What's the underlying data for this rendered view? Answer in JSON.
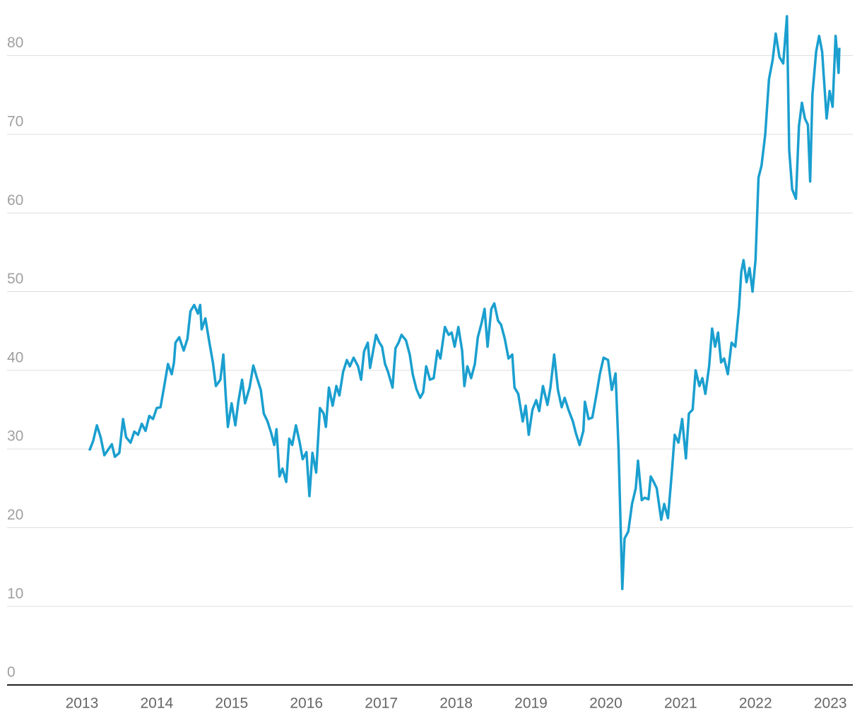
{
  "chart_data": {
    "type": "line",
    "x": [
      2013.1,
      2013.15,
      2013.2,
      2013.25,
      2013.3,
      2013.4,
      2013.44,
      2013.5,
      2013.55,
      2013.59,
      2013.65,
      2013.7,
      2013.75,
      2013.8,
      2013.85,
      2013.9,
      2013.95,
      2014.0,
      2014.05,
      2014.1,
      2014.15,
      2014.2,
      2014.23,
      2014.25,
      2014.3,
      2014.36,
      2014.41,
      2014.45,
      2014.5,
      2014.55,
      2014.58,
      2014.6,
      2014.65,
      2014.7,
      2014.75,
      2014.79,
      2014.85,
      2014.89,
      2014.92,
      2014.95,
      2015.0,
      2015.05,
      2015.09,
      2015.14,
      2015.18,
      2015.24,
      2015.29,
      2015.34,
      2015.39,
      2015.43,
      2015.48,
      2015.53,
      2015.57,
      2015.6,
      2015.64,
      2015.68,
      2015.73,
      2015.77,
      2015.81,
      2015.86,
      2015.91,
      2015.95,
      2016.0,
      2016.04,
      2016.08,
      2016.13,
      2016.18,
      2016.23,
      2016.26,
      2016.3,
      2016.35,
      2016.4,
      2016.44,
      2016.49,
      2016.54,
      2016.58,
      2016.63,
      2016.69,
      2016.73,
      2016.77,
      2016.82,
      2016.85,
      2016.89,
      2016.93,
      2016.97,
      2017.01,
      2017.05,
      2017.09,
      2017.15,
      2017.19,
      2017.23,
      2017.27,
      2017.33,
      2017.38,
      2017.42,
      2017.47,
      2017.52,
      2017.56,
      2017.6,
      2017.65,
      2017.7,
      2017.75,
      2017.79,
      2017.85,
      2017.9,
      2017.94,
      2017.98,
      2018.03,
      2018.08,
      2018.11,
      2018.15,
      2018.2,
      2018.25,
      2018.29,
      2018.34,
      2018.38,
      2018.42,
      2018.47,
      2018.51,
      2018.56,
      2018.6,
      2018.65,
      2018.7,
      2018.75,
      2018.78,
      2018.83,
      2018.89,
      2018.93,
      2018.97,
      2019.02,
      2019.07,
      2019.11,
      2019.16,
      2019.22,
      2019.26,
      2019.31,
      2019.36,
      2019.41,
      2019.45,
      2019.5,
      2019.56,
      2019.6,
      2019.65,
      2019.7,
      2019.72,
      2019.77,
      2019.82,
      2019.88,
      2019.92,
      2019.97,
      2020.03,
      2020.08,
      2020.13,
      2020.17,
      2020.22,
      2020.25,
      2020.3,
      2020.35,
      2020.4,
      2020.43,
      2020.48,
      2020.52,
      2020.57,
      2020.6,
      2020.64,
      2020.68,
      2020.74,
      2020.78,
      2020.83,
      2020.88,
      2020.92,
      2020.97,
      2021.02,
      2021.07,
      2021.11,
      2021.16,
      2021.2,
      2021.25,
      2021.29,
      2021.33,
      2021.38,
      2021.42,
      2021.46,
      2021.5,
      2021.54,
      2021.58,
      2021.63,
      2021.68,
      2021.73,
      2021.78,
      2021.81,
      2021.84,
      2021.88,
      2021.92,
      2021.96,
      2022.0,
      2022.04,
      2022.08,
      2022.13,
      2022.18,
      2022.23,
      2022.27,
      2022.32,
      2022.37,
      2022.42,
      2022.45,
      2022.49,
      2022.54,
      2022.58,
      2022.62,
      2022.66,
      2022.7,
      2022.73,
      2022.76,
      2022.81,
      2022.85,
      2022.89,
      2022.95,
      2022.99,
      2023.03,
      2023.07,
      2023.11,
      2023.12
    ],
    "series": [
      {
        "color": "#1a9fcf",
        "values": [
          29.8,
          31,
          33,
          31.5,
          29.2,
          30.6,
          29,
          29.5,
          33.8,
          31.5,
          30.8,
          32.2,
          31.8,
          33.2,
          32.3,
          34.2,
          33.8,
          35.2,
          35.3,
          38,
          40.8,
          39.5,
          41,
          43.5,
          44.2,
          42.5,
          44,
          47.5,
          48.3,
          47.2,
          48.3,
          45.2,
          46.6,
          43.7,
          41,
          38,
          38.8,
          42,
          37,
          32.8,
          35.8,
          33,
          36,
          38.8,
          35.8,
          37.8,
          40.6,
          39,
          37.5,
          34.5,
          33.5,
          32,
          30.5,
          32.5,
          26.5,
          27.5,
          25.8,
          31.3,
          30.5,
          33,
          30.8,
          28.7,
          29.6,
          24,
          29.5,
          27,
          35.2,
          34.5,
          32.8,
          37.8,
          35.5,
          38,
          36.8,
          39.8,
          41.3,
          40.5,
          41.6,
          40.5,
          38.8,
          42.4,
          43.5,
          40.3,
          42.4,
          44.5,
          43.6,
          43,
          40.8,
          39.8,
          37.8,
          42.8,
          43.5,
          44.5,
          43.8,
          42,
          39.5,
          37.6,
          36.5,
          37.2,
          40.5,
          38.8,
          39,
          42.5,
          41.5,
          45.5,
          44.5,
          44.8,
          43,
          45.5,
          42.5,
          38,
          40.5,
          39,
          40.8,
          44.2,
          46,
          47.8,
          43,
          47.8,
          48.5,
          46.3,
          45.8,
          44,
          41.5,
          42,
          37.8,
          37,
          33.5,
          35.5,
          31.8,
          35,
          36.2,
          34.8,
          38,
          35.6,
          37.8,
          42,
          37.5,
          35.3,
          36.5,
          35,
          33.5,
          32,
          30.5,
          32.3,
          36,
          33.8,
          34,
          37.2,
          39.5,
          41.6,
          41.3,
          37.5,
          39.6,
          30,
          12.2,
          18.6,
          19.5,
          23,
          25,
          28.5,
          23.5,
          23.8,
          23.6,
          26.5,
          25.8,
          25,
          21,
          23,
          21.2,
          26.8,
          31.8,
          30.8,
          33.8,
          28.8,
          34.5,
          35,
          40,
          38,
          39,
          37,
          40.5,
          45.3,
          43,
          44.8,
          41,
          41.5,
          39.5,
          43.5,
          43,
          48,
          52.5,
          54,
          51.2,
          53,
          50,
          54,
          64.5,
          66,
          70,
          77,
          79.5,
          82.8,
          79.8,
          79,
          85,
          68,
          63,
          61.8,
          71,
          74,
          72,
          71.2,
          64,
          75,
          80.5,
          82.5,
          80.5,
          72,
          75.5,
          73.5,
          82.5,
          77.8,
          81
        ]
      }
    ],
    "xlim": [
      2012,
      2023.3
    ],
    "xticks": [
      2013,
      2014,
      2015,
      2016,
      2017,
      2018,
      2019,
      2020,
      2021,
      2022,
      2023
    ],
    "ylim": [
      0,
      85
    ],
    "yticks": [
      0,
      10,
      20,
      30,
      40,
      50,
      60,
      70,
      80
    ],
    "grid": true
  }
}
